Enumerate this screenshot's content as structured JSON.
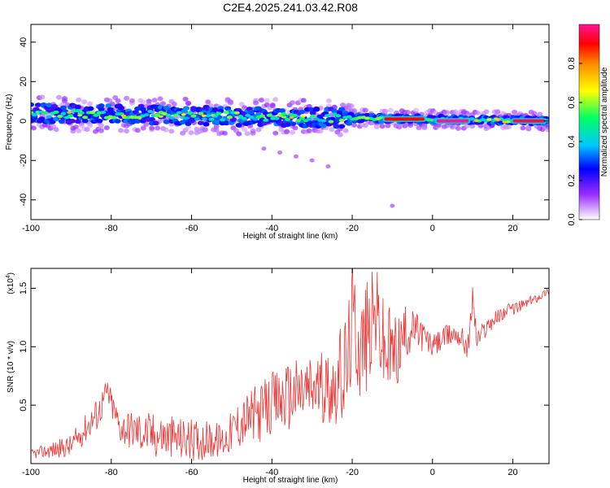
{
  "chart_data": [
    {
      "type": "heatmap",
      "title": "C2E4.2025.241.03.42.R08",
      "xlabel": "Height of straight line (km)",
      "ylabel": "Frequency (Hz)",
      "xlim": [
        -100,
        29
      ],
      "ylim": [
        -50,
        49
      ],
      "xticks": [
        "-100",
        "-80",
        "-60",
        "-40",
        "-20",
        "0",
        "20"
      ],
      "yticks": [
        "-40",
        "-20",
        "0",
        "20",
        "40"
      ],
      "colorbar": {
        "label": "Normalized spectral amplitude",
        "range": [
          0,
          1
        ],
        "ticks": [
          "0.0",
          "0.2",
          "0.4",
          "0.6",
          "0.8"
        ],
        "colors": [
          "#ffffff",
          "#9a2bff",
          "#0000ff",
          "#00c8ff",
          "#00ff66",
          "#ffff00",
          "#ff8800",
          "#ff0000",
          "#ff1493"
        ]
      },
      "main_band": {
        "start": {
          "x": -100,
          "y": 4
        },
        "end": {
          "x": 29,
          "y": 0
        },
        "peak_segments": [
          {
            "x_from": -12,
            "x_to": -2,
            "y": 1,
            "amplitude": 0.9
          },
          {
            "x_from": 1,
            "x_to": 9,
            "y": 0,
            "amplitude": 1.0
          },
          {
            "x_from": 20,
            "x_to": 28,
            "y": 0,
            "amplitude": 0.95
          }
        ]
      },
      "faint_trail": [
        {
          "x": -42,
          "y": -14
        },
        {
          "x": -38,
          "y": -16
        },
        {
          "x": -34,
          "y": -18
        },
        {
          "x": -30,
          "y": -20
        },
        {
          "x": -26,
          "y": -23
        },
        {
          "x": -10,
          "y": -43
        }
      ]
    },
    {
      "type": "line",
      "title": "",
      "xlabel": "Height of straight line (km)",
      "ylabel": "SNR (10 * v/v)",
      "multiplier_label": "(x10",
      "multiplier_exponent": "4",
      "multiplier_close": ")",
      "xlim": [
        -100,
        29
      ],
      "ylim": [
        0,
        1.67
      ],
      "xticks": [
        "-100",
        "-80",
        "-60",
        "-40",
        "-20",
        "0",
        "20"
      ],
      "yticks": [
        "0.5",
        "1.0",
        "1.5"
      ],
      "line_color": "#ee3333",
      "series": [
        {
          "name": "SNR",
          "x": [
            -100,
            -90,
            -83,
            -81,
            -78,
            -70,
            -60,
            -52,
            -48,
            -44,
            -40,
            -36,
            -32,
            -28,
            -24,
            -21,
            -20,
            -18,
            -16,
            -14,
            -12,
            -9,
            -7,
            -5,
            -3,
            0,
            3,
            6,
            9,
            10,
            11,
            14,
            18,
            22,
            26,
            29
          ],
          "y": [
            0.08,
            0.15,
            0.45,
            0.62,
            0.32,
            0.25,
            0.2,
            0.2,
            0.35,
            0.42,
            0.5,
            0.58,
            0.62,
            0.65,
            0.68,
            0.85,
            1.28,
            1.0,
            1.1,
            1.3,
            0.95,
            0.95,
            1.1,
            1.15,
            1.12,
            1.0,
            1.08,
            1.12,
            1.0,
            1.45,
            1.05,
            1.2,
            1.3,
            1.35,
            1.42,
            1.48
          ],
          "noise": [
            0.04,
            0.1,
            0.15,
            0.12,
            0.15,
            0.2,
            0.18,
            0.15,
            0.22,
            0.25,
            0.28,
            0.3,
            0.32,
            0.3,
            0.35,
            0.55,
            0.45,
            0.5,
            0.5,
            0.4,
            0.45,
            0.35,
            0.25,
            0.18,
            0.15,
            0.1,
            0.1,
            0.1,
            0.12,
            0.1,
            0.1,
            0.08,
            0.06,
            0.05,
            0.04,
            0.03
          ]
        }
      ]
    }
  ]
}
